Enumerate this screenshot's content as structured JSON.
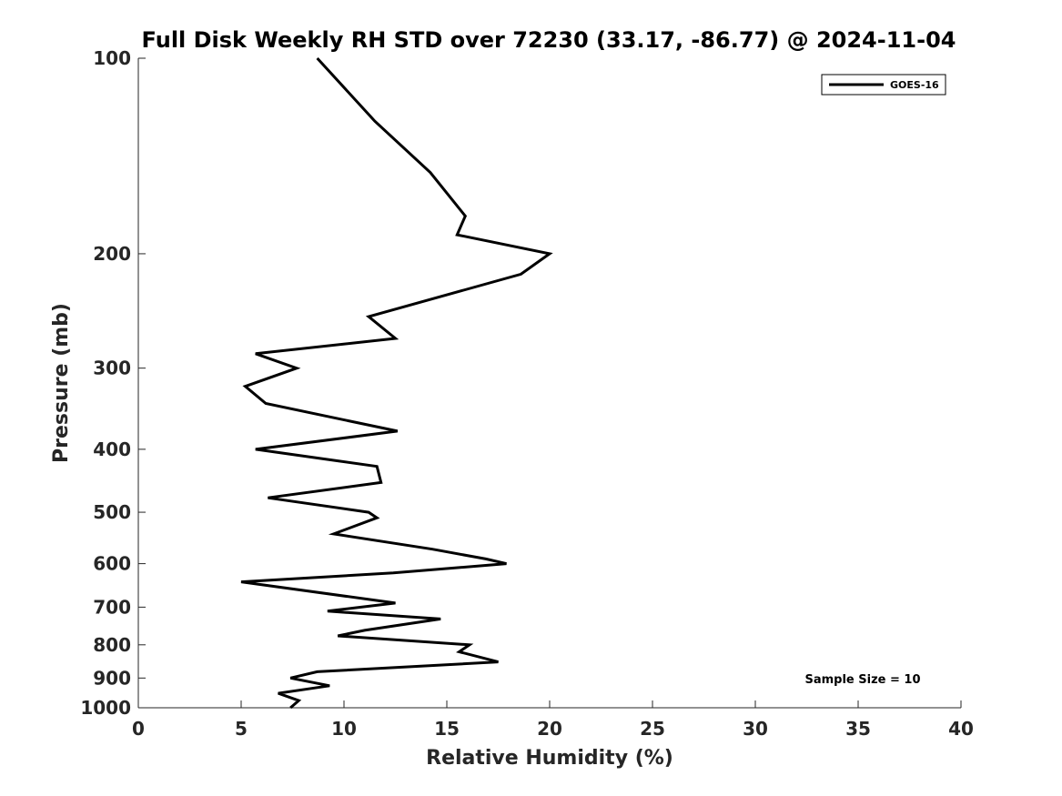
{
  "chart_data": {
    "type": "line",
    "title": "Full Disk Weekly RH STD over 72230 (33.17, -86.77) @ 2024-11-04",
    "xlabel": "Relative Humidity (%)",
    "ylabel": "Pressure (mb)",
    "xlim": [
      0,
      40
    ],
    "ylim": [
      100,
      1000
    ],
    "y_scale": "log",
    "y_reversed": true,
    "grid": false,
    "legend_position": "top-right",
    "x_ticks": [
      0,
      5,
      10,
      15,
      20,
      25,
      30,
      35,
      40
    ],
    "y_ticks": [
      100,
      200,
      300,
      400,
      500,
      600,
      700,
      800,
      900,
      1000
    ],
    "annotation": "Sample Size = 10",
    "series": [
      {
        "name": "GOES-16",
        "color": "#000000",
        "points": [
          [
            8.7,
            100
          ],
          [
            11.5,
            125
          ],
          [
            14.2,
            150
          ],
          [
            15.9,
            175
          ],
          [
            15.5,
            187
          ],
          [
            20.0,
            200
          ],
          [
            18.6,
            215
          ],
          [
            11.2,
            250
          ],
          [
            12.5,
            270
          ],
          [
            5.7,
            285
          ],
          [
            7.7,
            300
          ],
          [
            5.2,
            320
          ],
          [
            6.2,
            340
          ],
          [
            12.6,
            375
          ],
          [
            5.7,
            400
          ],
          [
            11.6,
            425
          ],
          [
            11.8,
            450
          ],
          [
            6.3,
            475
          ],
          [
            11.2,
            500
          ],
          [
            11.6,
            510
          ],
          [
            9.5,
            540
          ],
          [
            14.3,
            570
          ],
          [
            16.9,
            590
          ],
          [
            17.9,
            600
          ],
          [
            12.4,
            620
          ],
          [
            5.0,
            640
          ],
          [
            12.5,
            690
          ],
          [
            9.2,
            710
          ],
          [
            14.7,
            730
          ],
          [
            11.0,
            760
          ],
          [
            9.7,
            775
          ],
          [
            16.1,
            800
          ],
          [
            15.6,
            820
          ],
          [
            17.5,
            850
          ],
          [
            8.7,
            880
          ],
          [
            7.4,
            900
          ],
          [
            9.3,
            925
          ],
          [
            6.8,
            950
          ],
          [
            7.8,
            975
          ],
          [
            7.4,
            1000
          ]
        ]
      }
    ]
  }
}
